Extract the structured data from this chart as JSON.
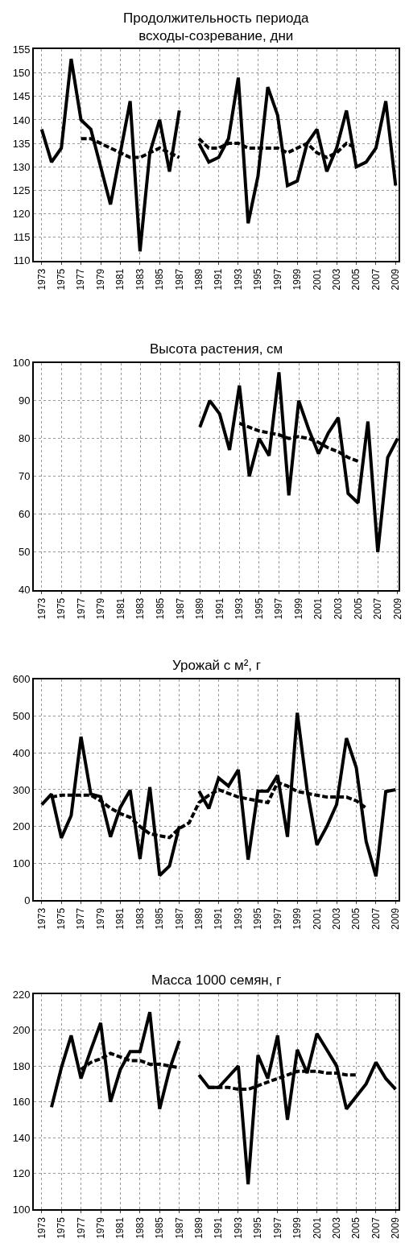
{
  "chart_data": [
    {
      "type": "line",
      "title": "Продолжительность периода\nвсходы-созревание, дни",
      "x": [
        1973,
        1974,
        1975,
        1976,
        1977,
        1978,
        1979,
        1980,
        1981,
        1982,
        1983,
        1984,
        1985,
        1986,
        1987,
        1988,
        1989,
        1990,
        1991,
        1992,
        1993,
        1994,
        1995,
        1996,
        1997,
        1998,
        1999,
        2000,
        2001,
        2002,
        2003,
        2004,
        2005,
        2006,
        2007,
        2008,
        2009
      ],
      "series": [
        {
          "color": "#000000",
          "line_style": "solid",
          "values": [
            138,
            131,
            134,
            153,
            140,
            138,
            130,
            122,
            133,
            144,
            112,
            133,
            140,
            129,
            142,
            null,
            135,
            131,
            132,
            136,
            149,
            118,
            128,
            147,
            141,
            126,
            127,
            135,
            138,
            129,
            134,
            142,
            130,
            131,
            134,
            144,
            126
          ]
        },
        {
          "color": "#000000",
          "line_style": "dashed",
          "values": [
            null,
            null,
            null,
            null,
            136,
            136,
            135,
            134,
            133,
            132,
            132,
            133,
            134,
            133,
            132,
            null,
            136,
            134,
            134,
            135,
            135,
            134,
            134,
            134,
            134,
            133,
            134,
            135,
            133,
            132,
            133,
            135,
            134,
            null,
            null,
            null,
            null
          ]
        }
      ],
      "xlim": [
        1972.2,
        2009.3
      ],
      "xticks": [
        1973,
        1975,
        1977,
        1979,
        1981,
        1983,
        1985,
        1987,
        1989,
        1991,
        1993,
        1995,
        1997,
        1999,
        2001,
        2003,
        2005,
        2007,
        2009
      ],
      "ylim": [
        110,
        155
      ],
      "yticks": [
        110,
        115,
        120,
        125,
        130,
        135,
        140,
        145,
        150,
        155
      ],
      "grid": true
    },
    {
      "type": "line",
      "title": "Высота растения, см",
      "series": [
        {
          "color": "#000000",
          "line_style": "solid",
          "x": [
            1989,
            1990,
            1991,
            1992,
            1993,
            1994,
            1995,
            1996,
            1997,
            1998,
            1999,
            2000,
            2001,
            2002,
            2003,
            2004,
            2005,
            2006,
            2007,
            2008,
            2009
          ],
          "values": [
            83,
            90,
            86.5,
            77,
            94,
            70,
            80,
            75.5,
            97.5,
            65,
            90,
            82.5,
            76,
            81.5,
            85.5,
            65.5,
            63,
            84.5,
            50,
            75,
            80
          ]
        },
        {
          "color": "#000000",
          "line_style": "dashed",
          "x": [
            1993,
            1994,
            1995,
            1996,
            1997,
            1998,
            1999,
            2000,
            2001,
            2002,
            2003,
            2004,
            2005
          ],
          "values": [
            84,
            83,
            82,
            81.5,
            81,
            80,
            80.5,
            80,
            79,
            77.5,
            76.5,
            75,
            74
          ]
        }
      ],
      "xlim": [
        1972.2,
        2009.1
      ],
      "xticks": [
        1973,
        1975,
        1977,
        1979,
        1981,
        1983,
        1985,
        1987,
        1989,
        1991,
        1993,
        1995,
        1997,
        1999,
        2001,
        2003,
        2005,
        2007,
        2009
      ],
      "ylim": [
        40,
        100
      ],
      "yticks": [
        40,
        50,
        60,
        70,
        80,
        90,
        100
      ],
      "grid": true
    },
    {
      "type": "line",
      "title": "Урожай с м², г",
      "x": [
        1973,
        1974,
        1975,
        1976,
        1977,
        1978,
        1979,
        1980,
        1981,
        1982,
        1983,
        1984,
        1985,
        1986,
        1987,
        1988,
        1989,
        1990,
        1991,
        1992,
        1993,
        1994,
        1995,
        1996,
        1997,
        1998,
        1999,
        2000,
        2001,
        2002,
        2003,
        2004,
        2005,
        2006,
        2007,
        2008,
        2009
      ],
      "series": [
        {
          "color": "#000000",
          "line_style": "solid",
          "values": [
            259,
            288,
            169,
            230,
            444,
            288,
            281,
            172,
            252,
            299,
            112,
            307,
            67,
            93,
            201,
            null,
            296,
            249,
            332,
            310,
            354,
            110,
            296,
            296,
            339,
            172,
            509,
            300,
            150,
            200,
            260,
            440,
            360,
            160,
            65,
            295,
            300
          ]
        },
        {
          "color": "#000000",
          "line_style": "dashed",
          "values": [
            null,
            280,
            285,
            285,
            285,
            285,
            270,
            250,
            235,
            225,
            200,
            180,
            175,
            170,
            195,
            210,
            265,
            285,
            300,
            290,
            280,
            275,
            270,
            265,
            320,
            310,
            295,
            290,
            285,
            280,
            280,
            280,
            270,
            250,
            null,
            null,
            null
          ]
        }
      ],
      "xlim": [
        1972.2,
        2009.3
      ],
      "xticks": [
        1973,
        1975,
        1977,
        1979,
        1981,
        1983,
        1985,
        1987,
        1989,
        1991,
        1993,
        1995,
        1997,
        1999,
        2001,
        2003,
        2005,
        2007,
        2009
      ],
      "ylim": [
        0,
        600
      ],
      "yticks": [
        0,
        100,
        200,
        300,
        400,
        500,
        600
      ],
      "grid": true
    },
    {
      "type": "line",
      "title": "Масса 1000 семян, г",
      "series": [
        {
          "color": "#000000",
          "line_style": "solid",
          "x": [
            1974,
            1975,
            1976,
            1977,
            1978,
            1979,
            1980,
            1981,
            1982,
            1983,
            1984,
            1985,
            1986,
            1987,
            1988,
            1989,
            1990,
            1991,
            1992,
            1993,
            1994,
            1995,
            1996,
            1997,
            1998,
            1999,
            2000,
            2001,
            2002,
            2003,
            2004,
            2005,
            2006,
            2007,
            2008,
            2009
          ],
          "values": [
            157,
            179,
            197,
            173,
            189,
            204,
            160,
            178,
            188,
            188,
            210,
            156,
            178,
            194,
            null,
            175,
            168,
            168,
            174,
            180,
            114,
            186,
            173,
            197,
            150,
            189,
            176,
            198,
            189,
            180,
            156,
            163,
            170,
            182,
            173,
            167
          ]
        },
        {
          "color": "#000000",
          "line_style": "dashed",
          "x": [
            1977,
            1978,
            1979,
            1980,
            1981,
            1982,
            1983,
            1984,
            1985,
            1986,
            1987,
            1988,
            1989,
            1990,
            1991,
            1992,
            1993,
            1994,
            1995,
            1996,
            1997,
            1998,
            1999,
            2000,
            2001,
            2002,
            2003,
            2004,
            2005
          ],
          "values": [
            178,
            182,
            184,
            187,
            185,
            183,
            183,
            181,
            181,
            180,
            179,
            null,
            null,
            168,
            168,
            168,
            167,
            167,
            169,
            171,
            173,
            175,
            177,
            177,
            177,
            176,
            176,
            175,
            175
          ]
        }
      ],
      "xlim": [
        1972.2,
        2009.3
      ],
      "xticks": [
        1973,
        1975,
        1977,
        1979,
        1981,
        1983,
        1985,
        1987,
        1989,
        1991,
        1993,
        1995,
        1997,
        1999,
        2001,
        2003,
        2005,
        2007,
        2009
      ],
      "ylim": [
        100,
        220
      ],
      "yticks": [
        100,
        120,
        140,
        160,
        180,
        200,
        220
      ],
      "grid": true
    }
  ]
}
